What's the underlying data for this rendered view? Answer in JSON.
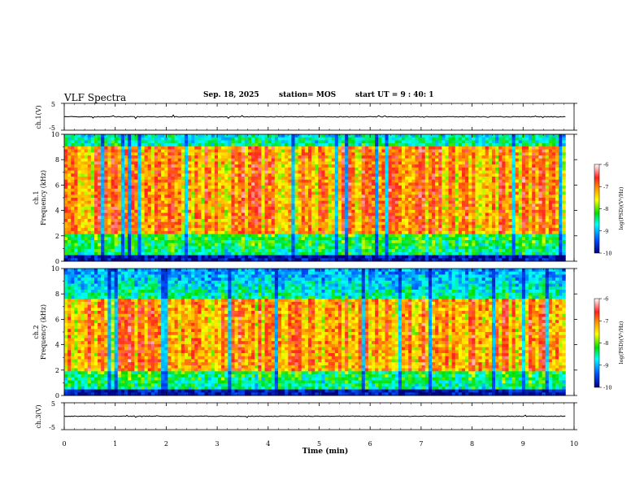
{
  "header": {
    "title": "VLF Spectra",
    "date": "Sep. 18, 2025",
    "station": "station= MOS",
    "start": "start  UT =  9 : 40: 1"
  },
  "chart_data": [
    {
      "type": "line",
      "ylabel": "ch.1(V)",
      "ylim": [
        -5,
        5
      ],
      "yticks": [
        "5",
        "-5"
      ],
      "series": [
        {
          "values_note": "",
          "level": 0
        }
      ]
    },
    {
      "type": "heatmap",
      "channel_label": "ch.1",
      "ylabel": "Frequency (kHz)",
      "ylim": [
        0,
        10
      ],
      "yticks": [
        "0",
        "2",
        "4",
        "6",
        "8",
        "10"
      ],
      "intense_band_khz": [
        2.2,
        9.0
      ],
      "colorbar": {
        "label": "log(PSD)(V²/Hz)",
        "ticks": [
          "-6",
          "-7",
          "-8",
          "-9",
          "-10"
        ],
        "range": [
          -10,
          -6
        ]
      }
    },
    {
      "type": "heatmap",
      "channel_label": "ch.2",
      "ylabel": "Frequency (kHz)",
      "ylim": [
        0,
        10
      ],
      "yticks": [
        "0",
        "2",
        "4",
        "6",
        "8",
        "10"
      ],
      "intense_band_khz": [
        1.8,
        7.6
      ],
      "colorbar": {
        "label": "log(PSD)(V²/Hz)",
        "ticks": [
          "-6",
          "-7",
          "-8",
          "-9",
          "-10"
        ],
        "range": [
          -10,
          -6
        ]
      }
    },
    {
      "type": "line",
      "ylabel": "ch.3(V)",
      "ylim": [
        -5,
        5
      ],
      "yticks": [
        "5",
        "-5"
      ],
      "series": [
        {
          "level": 0
        }
      ]
    }
  ],
  "xaxis": {
    "label": "Time  (min)",
    "range": [
      0,
      10
    ],
    "ticks": [
      "0",
      "1",
      "2",
      "3",
      "4",
      "5",
      "6",
      "7",
      "8",
      "9",
      "10"
    ],
    "data_end_min": 9.83
  },
  "colors": {
    "map": [
      "#ffffff",
      "#ff2020",
      "#ffa000",
      "#ffff00",
      "#00e000",
      "#00ffff",
      "#0060ff",
      "#000080"
    ]
  }
}
